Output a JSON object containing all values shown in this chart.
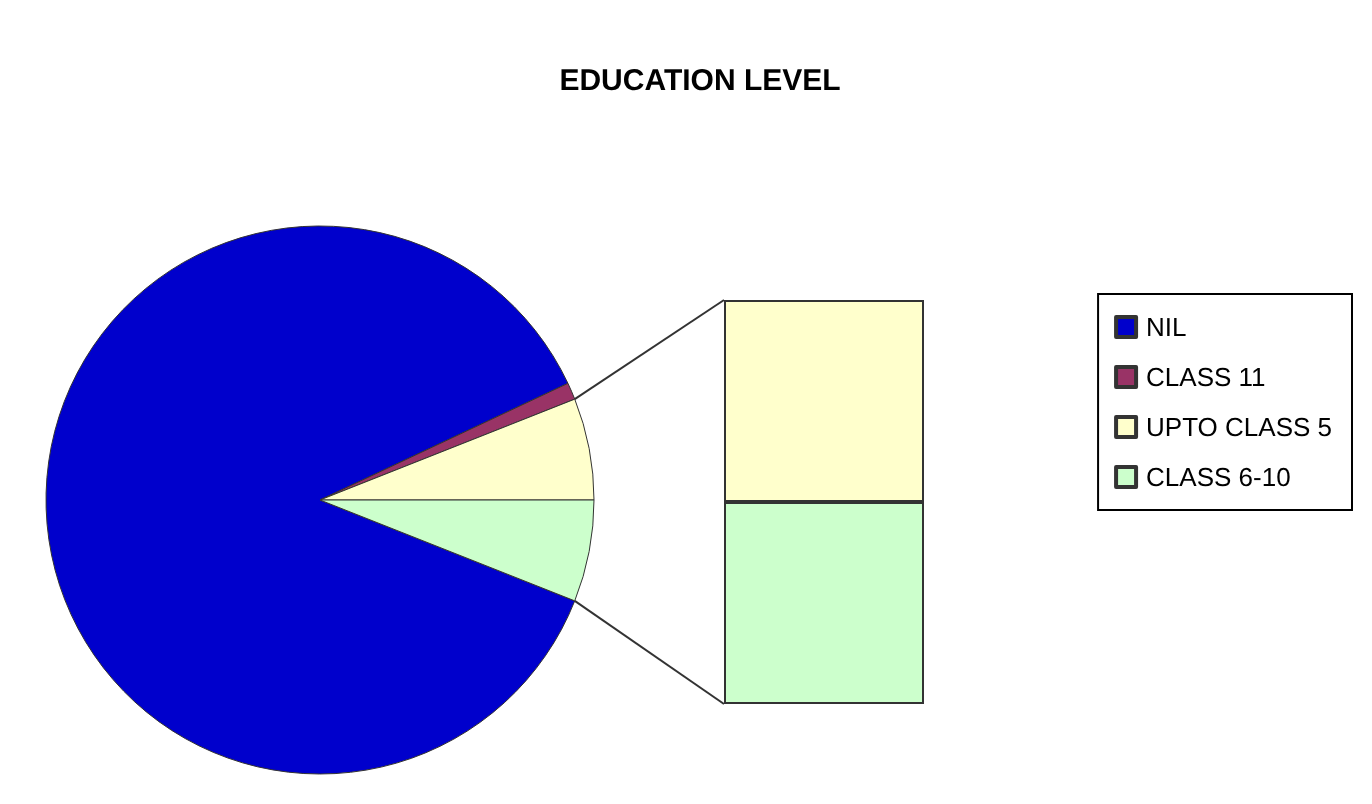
{
  "chart_data": {
    "type": "pie",
    "title": "EDUCATION LEVEL",
    "categories": [
      "NIL",
      "CLASS 11",
      "UPTO CLASS 5",
      "CLASS 6-10"
    ],
    "values": [
      87,
      1,
      6,
      6
    ],
    "colors": [
      "#0000cc",
      "#993366",
      "#ffffcc",
      "#ccffcc"
    ],
    "legend": "right"
  }
}
